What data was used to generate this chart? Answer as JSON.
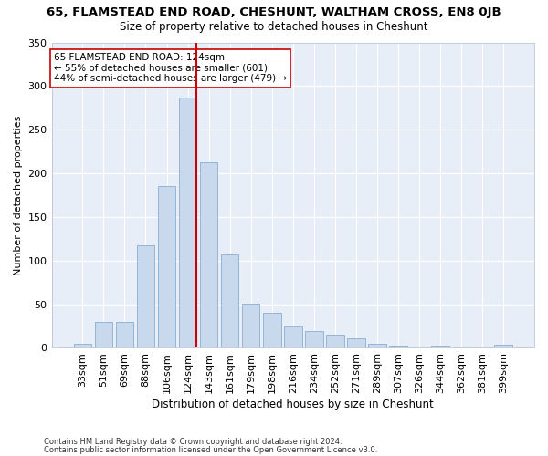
{
  "title": "65, FLAMSTEAD END ROAD, CHESHUNT, WALTHAM CROSS, EN8 0JB",
  "subtitle": "Size of property relative to detached houses in Cheshunt",
  "xlabel": "Distribution of detached houses by size in Cheshunt",
  "ylabel": "Number of detached properties",
  "bar_color": "#c8d9ed",
  "bar_edge_color": "#8aaed4",
  "bg_color": "#e8eef8",
  "grid_color": "#ffffff",
  "categories": [
    "33sqm",
    "51sqm",
    "69sqm",
    "88sqm",
    "106sqm",
    "124sqm",
    "143sqm",
    "161sqm",
    "179sqm",
    "198sqm",
    "216sqm",
    "234sqm",
    "252sqm",
    "271sqm",
    "289sqm",
    "307sqm",
    "326sqm",
    "344sqm",
    "362sqm",
    "381sqm",
    "399sqm"
  ],
  "values": [
    5,
    30,
    30,
    117,
    185,
    287,
    213,
    107,
    51,
    40,
    24,
    19,
    15,
    11,
    5,
    3,
    0,
    3,
    0,
    0,
    4
  ],
  "vline_after_idx": 5,
  "vline_color": "#cc0000",
  "annotation_text": "65 FLAMSTEAD END ROAD: 124sqm\n← 55% of detached houses are smaller (601)\n44% of semi-detached houses are larger (479) →",
  "annotation_box_color": "#ffffff",
  "annotation_box_edge": "#cc0000",
  "footer1": "Contains HM Land Registry data © Crown copyright and database right 2024.",
  "footer2": "Contains public sector information licensed under the Open Government Licence v3.0.",
  "ylim": [
    0,
    350
  ],
  "yticks": [
    0,
    50,
    100,
    150,
    200,
    250,
    300,
    350
  ]
}
